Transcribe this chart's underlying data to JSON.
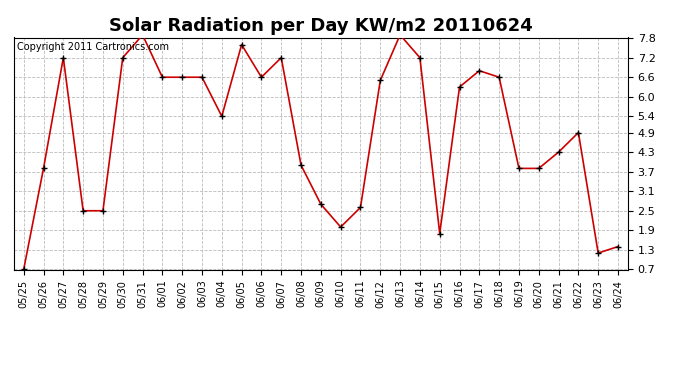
{
  "title": "Solar Radiation per Day KW/m2 20110624",
  "copyright": "Copyright 2011 Cartronics.com",
  "dates": [
    "05/25",
    "05/26",
    "05/27",
    "05/28",
    "05/29",
    "05/30",
    "05/31",
    "06/01",
    "06/02",
    "06/03",
    "06/04",
    "06/05",
    "06/06",
    "06/07",
    "06/08",
    "06/09",
    "06/10",
    "06/11",
    "06/12",
    "06/13",
    "06/14",
    "06/15",
    "06/16",
    "06/17",
    "06/18",
    "06/19",
    "06/20",
    "06/21",
    "06/22",
    "06/23",
    "06/24"
  ],
  "values": [
    0.7,
    3.8,
    7.2,
    2.5,
    2.5,
    7.2,
    7.9,
    6.6,
    6.6,
    6.6,
    5.4,
    7.6,
    6.6,
    7.2,
    3.9,
    2.7,
    2.0,
    2.6,
    6.5,
    7.9,
    7.2,
    1.8,
    6.3,
    6.8,
    6.6,
    3.8,
    3.8,
    4.3,
    4.9,
    1.2,
    1.4
  ],
  "line_color": "#cc0000",
  "background_color": "#ffffff",
  "grid_color": "#bbbbbb",
  "ylim_min": 0.7,
  "ylim_max": 7.8,
  "yticks": [
    0.7,
    1.3,
    1.9,
    2.5,
    3.1,
    3.7,
    4.3,
    4.9,
    5.4,
    6.0,
    6.6,
    7.2,
    7.8
  ],
  "title_fontsize": 13,
  "tick_fontsize": 7,
  "copyright_fontsize": 7
}
